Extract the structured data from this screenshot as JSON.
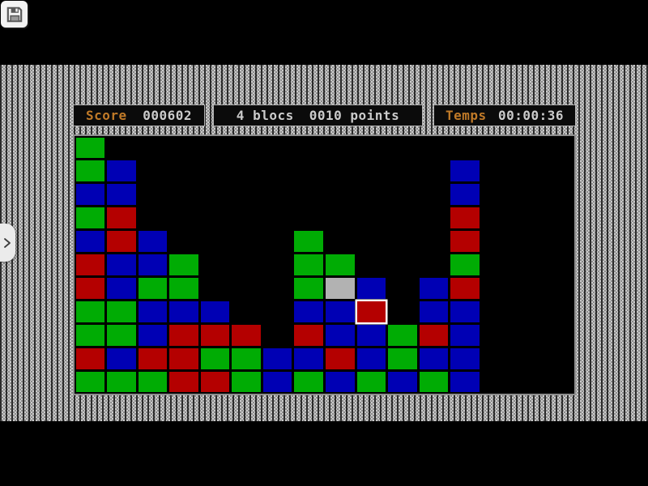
{
  "toolbar": {
    "save_icon": "floppy-disk-icon"
  },
  "hud": {
    "score": {
      "label": "Score",
      "value": "000602"
    },
    "blocs": {
      "count_text": "4 blocs",
      "points_text": "0010 points"
    },
    "time": {
      "label": "Temps",
      "value": "00:00:36"
    }
  },
  "nav": {
    "drawer_chevron": "chevron-right"
  },
  "board": {
    "cols": 16,
    "rows": 11,
    "legend": {
      "G": "green",
      "B": "blue",
      "R": "red",
      "Y": "gray",
      ".": "empty"
    },
    "grid": [
      "G...............",
      "GB..........B...",
      "BB..........B...",
      "GR..........R...",
      "BRB....G....R...",
      "RBBG...GG...G...",
      "RBGG...GYB.BR...",
      "GGBBB..BBR.BB...",
      "GGBRRR.RBBGRB...",
      "RBRRGGBBRBGBB...",
      "GGGRRGBGBGBGB..."
    ],
    "selected": {
      "row": 7,
      "col": 9
    }
  },
  "colors": {
    "hud_label": "#c07a28",
    "hud_value": "#cbcbcb",
    "board_bg": "#000000",
    "selected_outline": "#ffffff",
    "blocks": {
      "G": "#00ac04",
      "B": "#0000b4",
      "R": "#b40000",
      "Y": "#b2b2b2"
    }
  }
}
